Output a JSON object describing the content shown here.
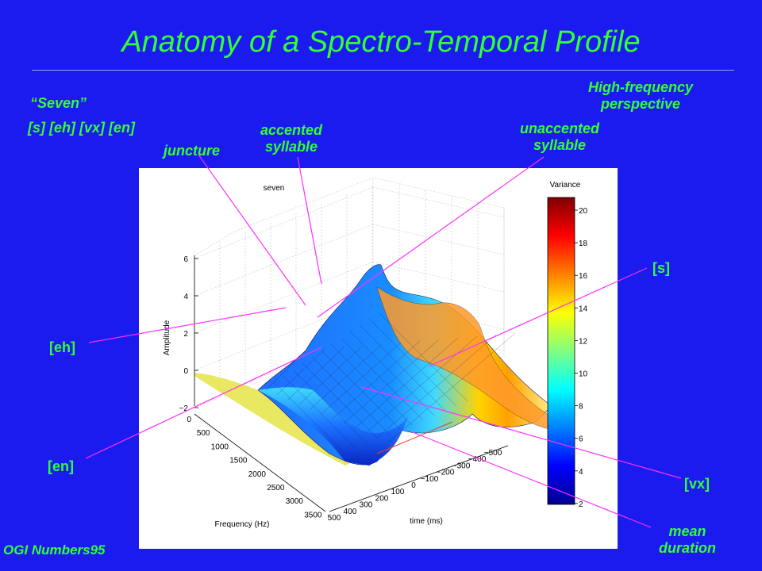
{
  "title": "Anatomy of a Spectro-Temporal Profile",
  "word": "“Seven”",
  "phones": "[s] [eh] [vx] [en]",
  "corpus": "OGI Numbers95",
  "perspective": [
    "High-frequency",
    "perspective"
  ],
  "annotations": {
    "juncture": "juncture",
    "accented": [
      "accented",
      "syllable"
    ],
    "unaccented": [
      "unaccented",
      "syllable"
    ],
    "s": "[s]",
    "eh": "[eh]",
    "en": "[en]",
    "vx": "[vx]",
    "mean_duration": [
      "mean",
      "duration"
    ]
  },
  "plot": {
    "title": "seven",
    "zlabel": "Amplitude",
    "xlabel": "Frequency (Hz)",
    "ylabel": "time (ms)",
    "colorbar_title": "Variance",
    "z_ticks": [
      "6",
      "4",
      "2",
      "0",
      "−2"
    ],
    "freq_ticks": [
      "0",
      "500",
      "1000",
      "1500",
      "2000",
      "2500",
      "3000",
      "3500"
    ],
    "time_ticks": [
      "500",
      "400",
      "300",
      "200",
      "100",
      "0",
      "−100",
      "−200",
      "−300",
      "−400",
      "−500"
    ],
    "colorbar_ticks": [
      "20",
      "18",
      "16",
      "14",
      "12",
      "10",
      "8",
      "6",
      "4",
      "2"
    ],
    "colormap": [
      "#00008f",
      "#0000ff",
      "#0080ff",
      "#00ffff",
      "#80ff80",
      "#ffff00",
      "#ff8000",
      "#ff0000",
      "#800000"
    ]
  }
}
